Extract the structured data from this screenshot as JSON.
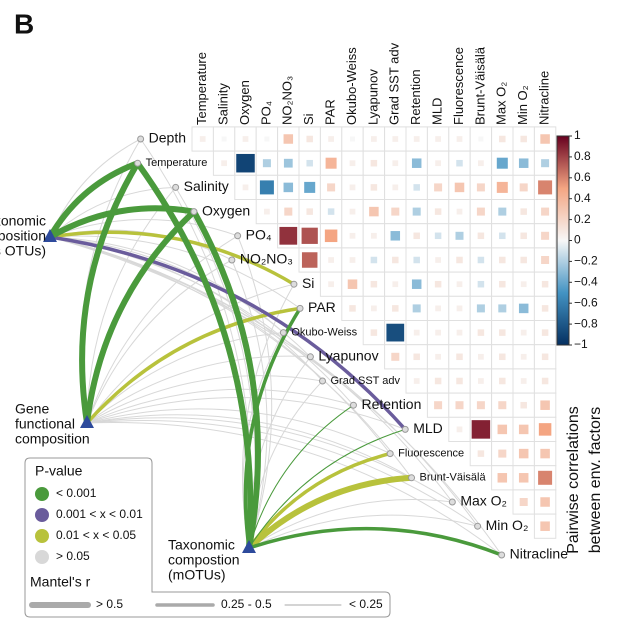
{
  "panel_label": "B",
  "chart_data": {
    "type": "correlogram",
    "variables": [
      "Depth",
      "Temperature",
      "Salinity",
      "Oxygen",
      "PO₄",
      "NO₂NO₃",
      "Si",
      "PAR",
      "Okubo-Weiss",
      "Lyapunov",
      "Grad SST adv",
      "Retention",
      "MLD",
      "Fluorescence",
      "Brunt-Väisälä",
      "Max O₂",
      "Min O₂",
      "Nitracline"
    ],
    "correlations": [
      [
        0.05,
        0,
        0.05,
        0,
        0.3,
        0.1,
        0.05,
        0,
        0.05,
        0.05,
        0.05,
        0.05,
        0.05,
        0,
        0.1,
        0.1,
        0.3
      ],
      [
        0.05,
        -0.9,
        -0.2,
        -0.25,
        -0.1,
        0.4,
        0.05,
        0.1,
        0.05,
        -0.3,
        0.05,
        -0.1,
        0.05,
        -0.4,
        -0.3,
        -0.2
      ],
      [
        0.05,
        -0.6,
        -0.3,
        -0.4,
        0.2,
        0.05,
        0.1,
        0.05,
        -0.1,
        0.2,
        0.3,
        0.2,
        0.4,
        0.2,
        0.6
      ],
      [
        0.05,
        0.2,
        0.1,
        -0.1,
        0.05,
        0.3,
        0.2,
        -0.2,
        0.1,
        0.05,
        0.2,
        -0.2,
        0.1,
        0.2
      ],
      [
        0.85,
        0.75,
        0.5,
        0.05,
        0.05,
        -0.3,
        0.1,
        -0.1,
        -0.2,
        0.1,
        -0.1,
        0.1,
        0.2
      ],
      [
        0.7,
        0.05,
        0.05,
        -0.1,
        0.1,
        -0.1,
        0.05,
        0.1,
        -0.1,
        0.1,
        0.1,
        0.2
      ],
      [
        0.05,
        0.3,
        0.1,
        0.05,
        -0.3,
        0.1,
        0.05,
        -0.1,
        0.1,
        0.05,
        0.1
      ],
      [
        0.1,
        0.05,
        0.1,
        -0.2,
        0.05,
        0.05,
        -0.2,
        -0.2,
        -0.3,
        0.1
      ],
      [
        0.1,
        -0.85,
        0.05,
        0.05,
        0.05,
        0.1,
        0.1,
        0.05,
        0.1
      ],
      [
        0.2,
        0.1,
        0.05,
        0.1,
        0.05,
        0.1,
        0.05,
        0.1
      ],
      [
        0.05,
        0.1,
        0.1,
        0.05,
        0.1,
        0.05,
        0.1
      ],
      [
        0.2,
        0.2,
        0.2,
        0.2,
        0.1,
        0.3
      ],
      [
        0.05,
        0.9,
        0.3,
        0.3,
        0.5
      ],
      [
        0.1,
        0.2,
        0.3,
        0.3
      ],
      [
        0.3,
        0.3,
        0.6
      ],
      [
        0.2,
        0.3
      ],
      [
        0.3
      ]
    ],
    "colorbar_lim": [
      -1,
      1
    ],
    "colorbar_ticks": [
      1,
      0.8,
      0.6,
      0.4,
      0.2,
      0,
      {
        "value": -0.2,
        "label": "−0.2"
      },
      {
        "value": -0.4,
        "label": "−0.4"
      },
      {
        "value": -0.6,
        "label": "−0.6"
      },
      {
        "value": -0.8,
        "label": "−0.8"
      },
      {
        "value": -1,
        "label": "−1"
      }
    ],
    "colorbar_title": [
      "Pairwise correlations",
      "between env. factors"
    ],
    "sources": [
      {
        "name": [
          "Taxonomic",
          "composition",
          "(miTAGs OTUs)"
        ],
        "links": [
          [
            3,
            2
          ],
          [
            0,
            0
          ],
          [
            3,
            2
          ],
          [
            0,
            0
          ],
          [
            3,
            2
          ],
          [
            3,
            2
          ],
          [
            2,
            1
          ],
          [
            3,
            2
          ],
          [
            3,
            2
          ],
          [
            3,
            2
          ],
          [
            3,
            2
          ],
          [
            3,
            2
          ],
          [
            1,
            1
          ],
          [
            3,
            2
          ],
          [
            3,
            2
          ],
          [
            3,
            2
          ],
          [
            3,
            2
          ],
          [
            3,
            2
          ]
        ]
      },
      {
        "name": [
          "Gene",
          "functional",
          "composition"
        ],
        "links": [
          [
            3,
            2
          ],
          [
            0,
            0
          ],
          [
            3,
            2
          ],
          [
            0,
            0
          ],
          [
            3,
            2
          ],
          [
            3,
            2
          ],
          [
            3,
            2
          ],
          [
            2,
            1
          ],
          [
            3,
            2
          ],
          [
            3,
            2
          ],
          [
            3,
            2
          ],
          [
            3,
            2
          ],
          [
            3,
            2
          ],
          [
            3,
            2
          ],
          [
            3,
            2
          ],
          [
            3,
            2
          ],
          [
            3,
            2
          ],
          [
            3,
            2
          ]
        ]
      },
      {
        "name": [
          "Taxonomic",
          "compostion",
          "(mOTUs)"
        ],
        "links": [
          [
            3,
            2
          ],
          [
            0,
            0
          ],
          [
            3,
            2
          ],
          [
            0,
            0
          ],
          [
            3,
            2
          ],
          [
            3,
            2
          ],
          [
            3,
            2
          ],
          [
            0,
            1
          ],
          [
            3,
            2
          ],
          [
            3,
            2
          ],
          [
            3,
            2
          ],
          [
            0,
            2
          ],
          [
            0,
            2
          ],
          [
            2,
            1
          ],
          [
            2,
            0
          ],
          [
            3,
            2
          ],
          [
            3,
            2
          ],
          [
            0,
            1
          ]
        ]
      }
    ],
    "p_title": "P-value",
    "p_classes": [
      {
        "label": "< 0.001",
        "color": "#4a9a3c"
      },
      {
        "label": "0.001 < x < 0.01",
        "color": "#6a5c9c"
      },
      {
        "label": "0.01 < x < 0.05",
        "color": "#b8c23c"
      },
      {
        "label": "> 0.05",
        "color": "#d8d8d8"
      }
    ],
    "r_title": "Mantel's r",
    "r_classes": [
      "> 0.5",
      "0.25 - 0.5",
      "< 0.25"
    ]
  }
}
